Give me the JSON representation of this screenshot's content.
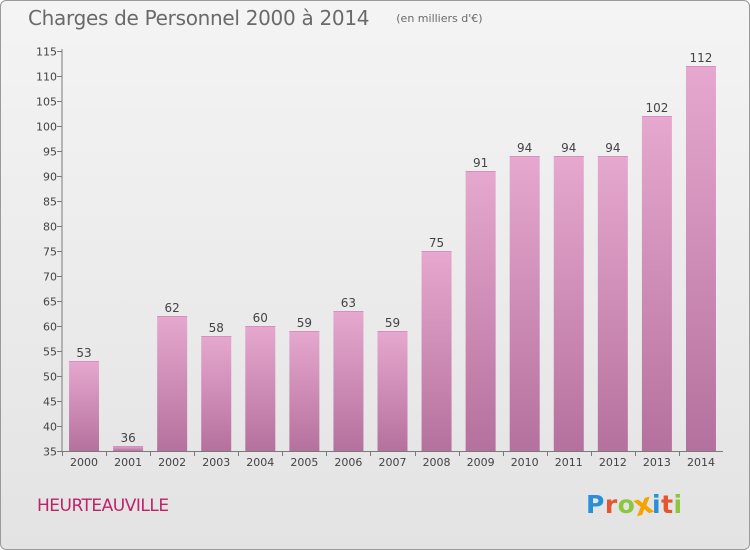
{
  "title": "Charges de Personnel 2000 à 2014",
  "subtitle": "(en milliers d'€)",
  "commune": "HEURTEAUVILLE",
  "brand": {
    "letters": [
      "P",
      "r",
      "o",
      "x",
      "i",
      "t",
      "i"
    ],
    "colors": [
      "#2a8fd6",
      "#e4572e",
      "#8cc63f",
      "#f4a300",
      "#2a8fd6",
      "#e4572e",
      "#8cc63f"
    ]
  },
  "colors": {
    "bar_top": "#e6a8cf",
    "bar_bottom": "#b5719d",
    "title": "#6a6a6a",
    "commune": "#c0226a"
  },
  "chart_data": {
    "type": "bar",
    "categories": [
      "2000",
      "2001",
      "2002",
      "2003",
      "2004",
      "2005",
      "2006",
      "2007",
      "2008",
      "2009",
      "2010",
      "2011",
      "2012",
      "2013",
      "2014"
    ],
    "values": [
      53,
      36,
      62,
      58,
      60,
      59,
      63,
      59,
      75,
      91,
      94,
      94,
      94,
      102,
      112
    ],
    "ylim": [
      35,
      115
    ],
    "yticks": [
      35,
      40,
      45,
      50,
      55,
      60,
      65,
      70,
      75,
      80,
      85,
      90,
      95,
      100,
      105,
      110,
      115
    ],
    "grid": false,
    "legend": "none"
  }
}
